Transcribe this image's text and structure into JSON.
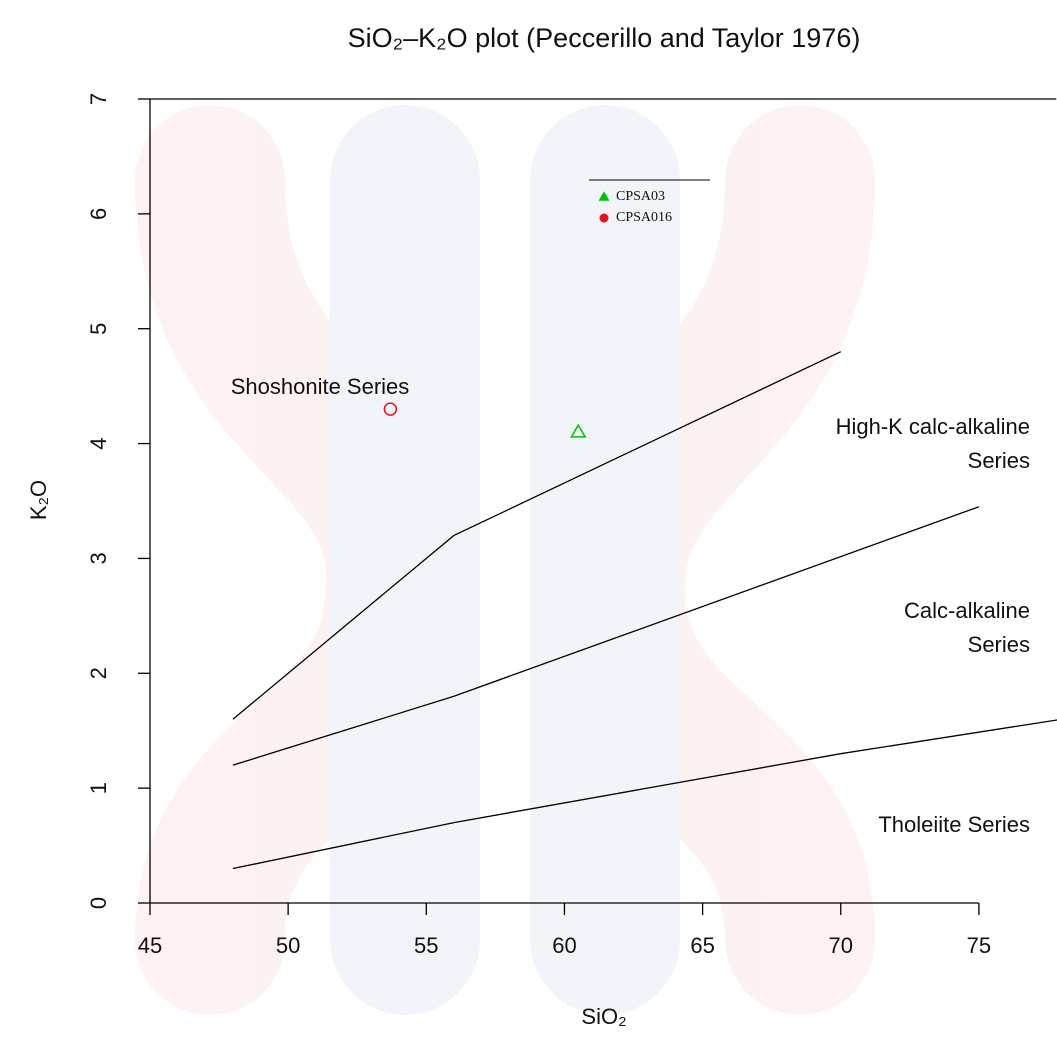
{
  "chart_data": {
    "type": "scatter",
    "title": "SiO₂–K₂O plot (Peccerillo and Taylor 1976)",
    "xlabel": "SiO₂",
    "ylabel": "K₂O",
    "xlim": [
      45,
      77.8
    ],
    "ylim": [
      0,
      7
    ],
    "xticks": [
      45,
      50,
      55,
      60,
      65,
      70,
      75
    ],
    "yticks": [
      0,
      1,
      2,
      3,
      4,
      5,
      6,
      7
    ],
    "series": [
      {
        "name": "CPSA03",
        "color": "#00c000",
        "marker": "triangle",
        "x": [
          60.5
        ],
        "values": [
          4.1
        ]
      },
      {
        "name": "CPSA016",
        "color": "#e8101a",
        "marker": "circle",
        "x": [
          53.7
        ],
        "values": [
          4.3
        ]
      }
    ],
    "boundaries": [
      {
        "color": "#000000",
        "x": [
          48,
          56,
          70
        ],
        "values": [
          1.6,
          3.2,
          4.8
        ]
      },
      {
        "color": "#000000",
        "x": [
          48,
          56,
          75
        ],
        "values": [
          1.2,
          1.8,
          3.45
        ]
      },
      {
        "color": "#000000",
        "x": [
          48,
          56,
          63,
          70,
          78
        ],
        "values": [
          0.3,
          0.7,
          1.0,
          1.3,
          1.6
        ]
      }
    ],
    "region_labels": [
      [
        "Shoshonite Series"
      ],
      [
        "High-K calc-alkaline",
        "Series"
      ],
      [
        "Calc-alkaline",
        "Series"
      ],
      [
        "Tholeiite Series"
      ]
    ]
  }
}
